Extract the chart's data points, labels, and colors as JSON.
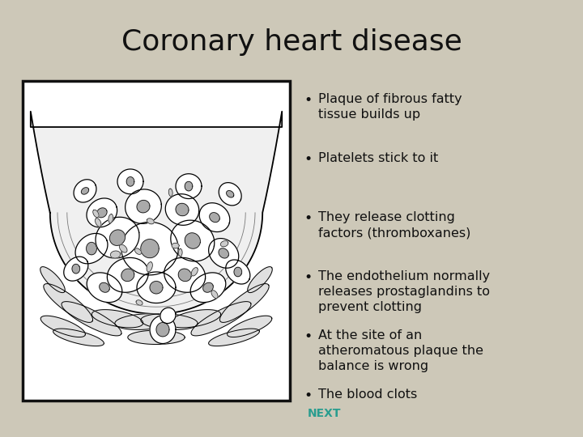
{
  "title": "Coronary heart disease",
  "title_fontsize": 26,
  "background_color": "#cdc8b8",
  "bullet_points": [
    "Plaque of fibrous fatty\ntissue builds up",
    "Platelets stick to it",
    "They release clotting\nfactors (thromboxanes)",
    "The endothelium normally\nreleases prostaglandins to\nprevent clotting",
    "At the site of an\natheromatous plaque the\nbalance is wrong",
    "The blood clots"
  ],
  "bullet_fontsize": 11.5,
  "bullet_color": "#111111",
  "next_color": "#2a9d8f",
  "next_text": "NEXT",
  "image_border_color": "#111111",
  "image_bg": "#ffffff"
}
